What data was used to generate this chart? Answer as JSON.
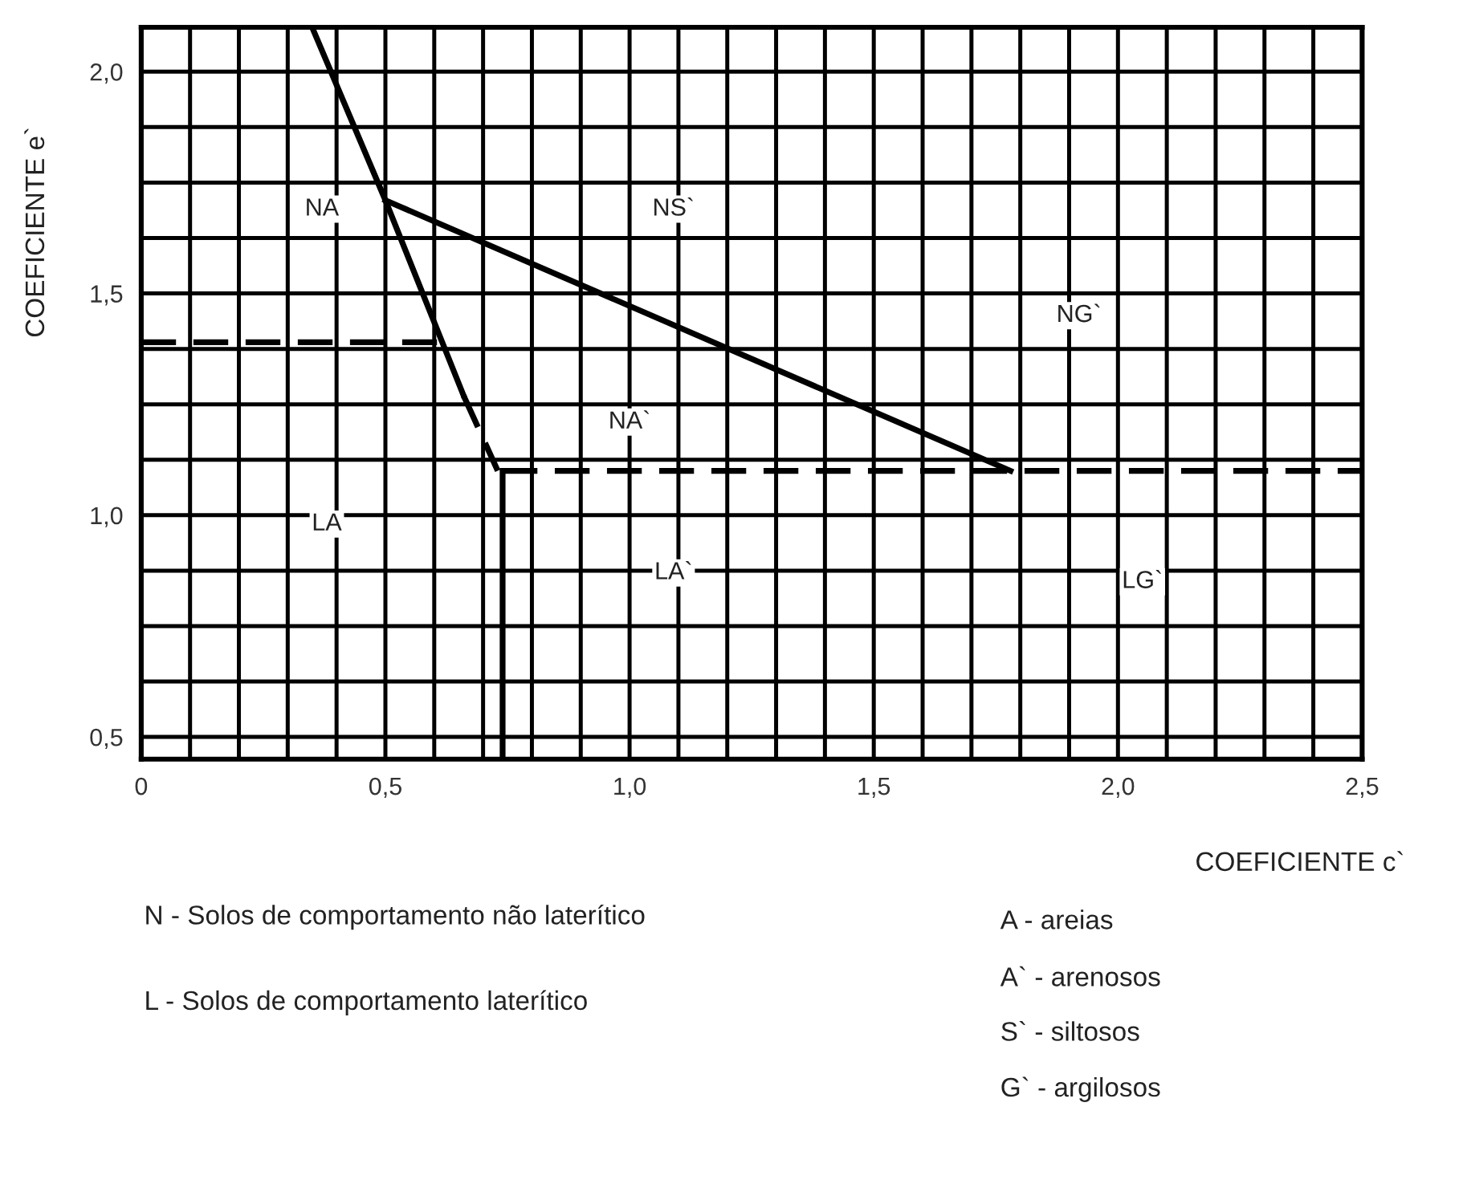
{
  "chart_data": {
    "type": "line",
    "xlabel": "COEFICIENTE c`",
    "ylabel": "COEFICIENTE e`",
    "xlim": [
      0,
      2.5
    ],
    "ylim": [
      0.45,
      2.1
    ],
    "xticks": [
      0,
      {
        "value": 0.1,
        "label": null
      },
      {
        "value": 0.2,
        "label": null
      },
      {
        "value": 0.3,
        "label": null
      },
      {
        "value": 0.4,
        "label": null
      },
      {
        "value": 0.5,
        "label": "0,5"
      },
      {
        "value": 0.6,
        "label": null
      },
      {
        "value": 0.7,
        "label": null
      },
      {
        "value": 0.8,
        "label": null
      },
      {
        "value": 0.9,
        "label": null
      },
      {
        "value": 1.0,
        "label": "1,0"
      },
      {
        "value": 1.1,
        "label": null
      },
      {
        "value": 1.2,
        "label": null
      },
      {
        "value": 1.3,
        "label": null
      },
      {
        "value": 1.4,
        "label": null
      },
      {
        "value": 1.5,
        "label": "1,5"
      },
      {
        "value": 1.6,
        "label": null
      },
      {
        "value": 1.7,
        "label": null
      },
      {
        "value": 1.8,
        "label": null
      },
      {
        "value": 1.9,
        "label": null
      },
      {
        "value": 2.0,
        "label": "2,0"
      },
      {
        "value": 2.1,
        "label": null
      },
      {
        "value": 2.2,
        "label": null
      },
      {
        "value": 2.3,
        "label": null
      },
      {
        "value": 2.4,
        "label": null
      },
      {
        "value": 2.5,
        "label": "2,5"
      }
    ],
    "yticks": [
      {
        "value": 0.5,
        "label": "0,5"
      },
      {
        "value": 0.625,
        "label": null
      },
      {
        "value": 0.75,
        "label": null
      },
      {
        "value": 0.875,
        "label": null
      },
      {
        "value": 1.0,
        "label": "1,0"
      },
      {
        "value": 1.125,
        "label": null
      },
      {
        "value": 1.25,
        "label": null
      },
      {
        "value": 1.375,
        "label": null
      },
      {
        "value": 1.5,
        "label": "1,5"
      },
      {
        "value": 1.625,
        "label": null
      },
      {
        "value": 1.75,
        "label": null
      },
      {
        "value": 1.875,
        "label": null
      },
      {
        "value": 2.0,
        "label": "2,0"
      }
    ],
    "grid": true,
    "legend": false,
    "marker": "none",
    "series": [
      {
        "color": "#000000",
        "line_style": "solid",
        "x": [
          0.35,
          0.5,
          0.66
        ],
        "values": [
          2.1,
          1.71,
          1.27
        ]
      },
      {
        "color": "#000000",
        "line_style": "dashed",
        "x": [
          0.66,
          0.73
        ],
        "values": [
          1.27,
          1.1
        ]
      },
      {
        "color": "#000000",
        "line_style": "solid",
        "x": [
          0.74,
          0.74
        ],
        "values": [
          1.1,
          0.45
        ]
      },
      {
        "color": "#000000",
        "line_style": "dashed",
        "x": [
          0.74,
          2.5
        ],
        "values": [
          1.1,
          1.1
        ]
      },
      {
        "color": "#000000",
        "line_style": "solid",
        "x": [
          0.5,
          1.78
        ],
        "values": [
          1.71,
          1.1
        ]
      },
      {
        "color": "#000000",
        "line_style": "dashed",
        "x": [
          0,
          0.61
        ],
        "values": [
          1.39,
          1.39
        ]
      }
    ],
    "annotations": [
      {
        "text": "NA",
        "x": 0.37,
        "y": 1.69
      },
      {
        "text": "NS`",
        "x": 1.09,
        "y": 1.69
      },
      {
        "text": "NG`",
        "x": 1.92,
        "y": 1.45
      },
      {
        "text": "NA`",
        "x": 1.0,
        "y": 1.21
      },
      {
        "text": "LA",
        "x": 0.38,
        "y": 0.98
      },
      {
        "text": "LA`",
        "x": 1.09,
        "y": 0.87
      },
      {
        "text": "LG`",
        "x": 2.05,
        "y": 0.85
      },
      "N - Solos de comportamento não laterítico",
      "L - Solos de comportamento laterítico",
      "A - areias",
      "A` - arenosos",
      "S` - siltosos",
      "G` - argilosos"
    ]
  }
}
